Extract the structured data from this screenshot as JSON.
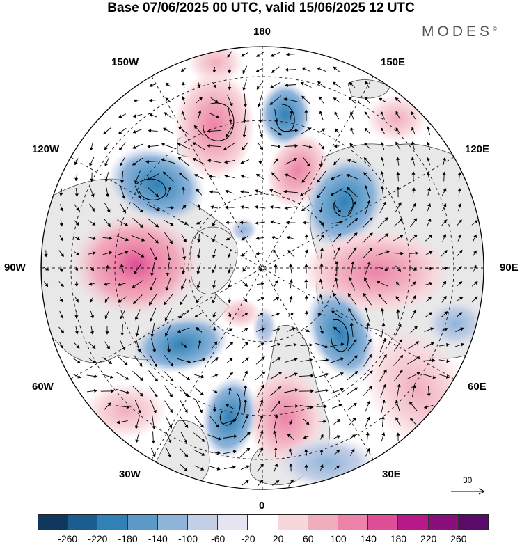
{
  "title": "Base 07/06/2025 00 UTC, valid 15/06/2025 12 UTC",
  "brand": {
    "name": "MODES",
    "mark": "©"
  },
  "longitude_labels": {
    "top": "180",
    "bottom": "0",
    "left": "90W",
    "right": "90E",
    "upper_left_1": "150W",
    "upper_left_2": "120W",
    "upper_right_1": "150E",
    "upper_right_2": "120E",
    "lower_left_1": "60W",
    "lower_left_2": "30W",
    "lower_right_1": "60E",
    "lower_right_2": "30E"
  },
  "reference_vector": {
    "label": "30"
  },
  "colorbar": {
    "ticks": [
      "-260",
      "-220",
      "-180",
      "-140",
      "-100",
      "-60",
      "-20",
      "20",
      "60",
      "100",
      "140",
      "180",
      "220",
      "260"
    ],
    "colors": [
      "#10375e",
      "#1a5d8f",
      "#3281b6",
      "#5b9ac8",
      "#8fb4da",
      "#c4cfe6",
      "#e6e4f0",
      "#ffffff",
      "#f8d7dc",
      "#f1adbd",
      "#ed83a8",
      "#df4f97",
      "#b8188a",
      "#8a0e7c",
      "#5a0a6a"
    ]
  },
  "map": {
    "projection": "north-polar-stereographic",
    "anomaly_centers": [
      {
        "region": "north-pacific",
        "sign": "positive"
      },
      {
        "region": "alaska-bering",
        "sign": "negative"
      },
      {
        "region": "canada",
        "sign": "positive"
      },
      {
        "region": "west-siberia",
        "sign": "positive"
      },
      {
        "region": "east-siberia",
        "sign": "negative"
      },
      {
        "region": "scandinavia",
        "sign": "negative"
      },
      {
        "region": "north-atlantic",
        "sign": "negative"
      },
      {
        "region": "western-europe",
        "sign": "positive"
      }
    ]
  }
}
